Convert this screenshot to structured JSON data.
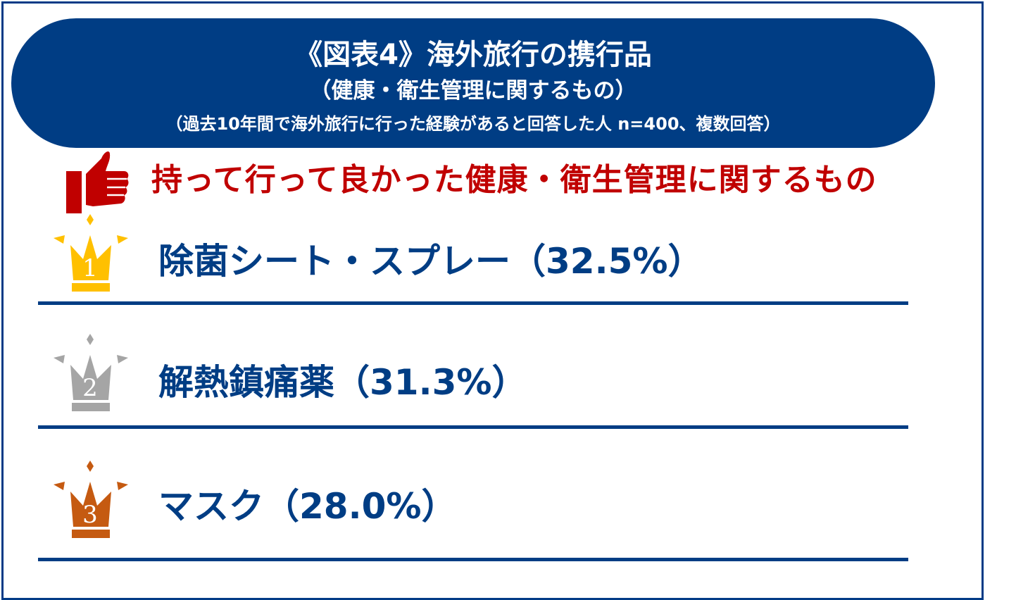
{
  "banner": {
    "title": "《図表4》海外旅行の携行品",
    "subtitle": "（健康・衛生管理に関するもの）",
    "note": "（過去10年間で海外旅行に行った経験があると回答した人 n=400、複数回答）"
  },
  "heading": {
    "text": "持って行って良かった健康・衛生管理に関するもの",
    "icon": "thumbs-up-icon",
    "color": "#c00000"
  },
  "colors": {
    "primary": "#003d84",
    "gold": "#ffc000",
    "silver": "#a5a5a5",
    "bronze": "#c55a11"
  },
  "chart_data": {
    "type": "table",
    "title": "《図表4》海外旅行の携行品",
    "rows": [
      {
        "rank": "1",
        "item": "除菌シート・スプレー",
        "value": 32.5,
        "label": "除菌シート・スプレー（32.5%）",
        "crown_color": "#ffc000"
      },
      {
        "rank": "2",
        "item": "解熱鎮痛薬",
        "value": 31.3,
        "label": "解熱鎮痛薬（31.3%）",
        "crown_color": "#a5a5a5"
      },
      {
        "rank": "3",
        "item": "マスク",
        "value": 28.0,
        "label": "マスク（28.0%）",
        "crown_color": "#c55a11"
      }
    ]
  }
}
